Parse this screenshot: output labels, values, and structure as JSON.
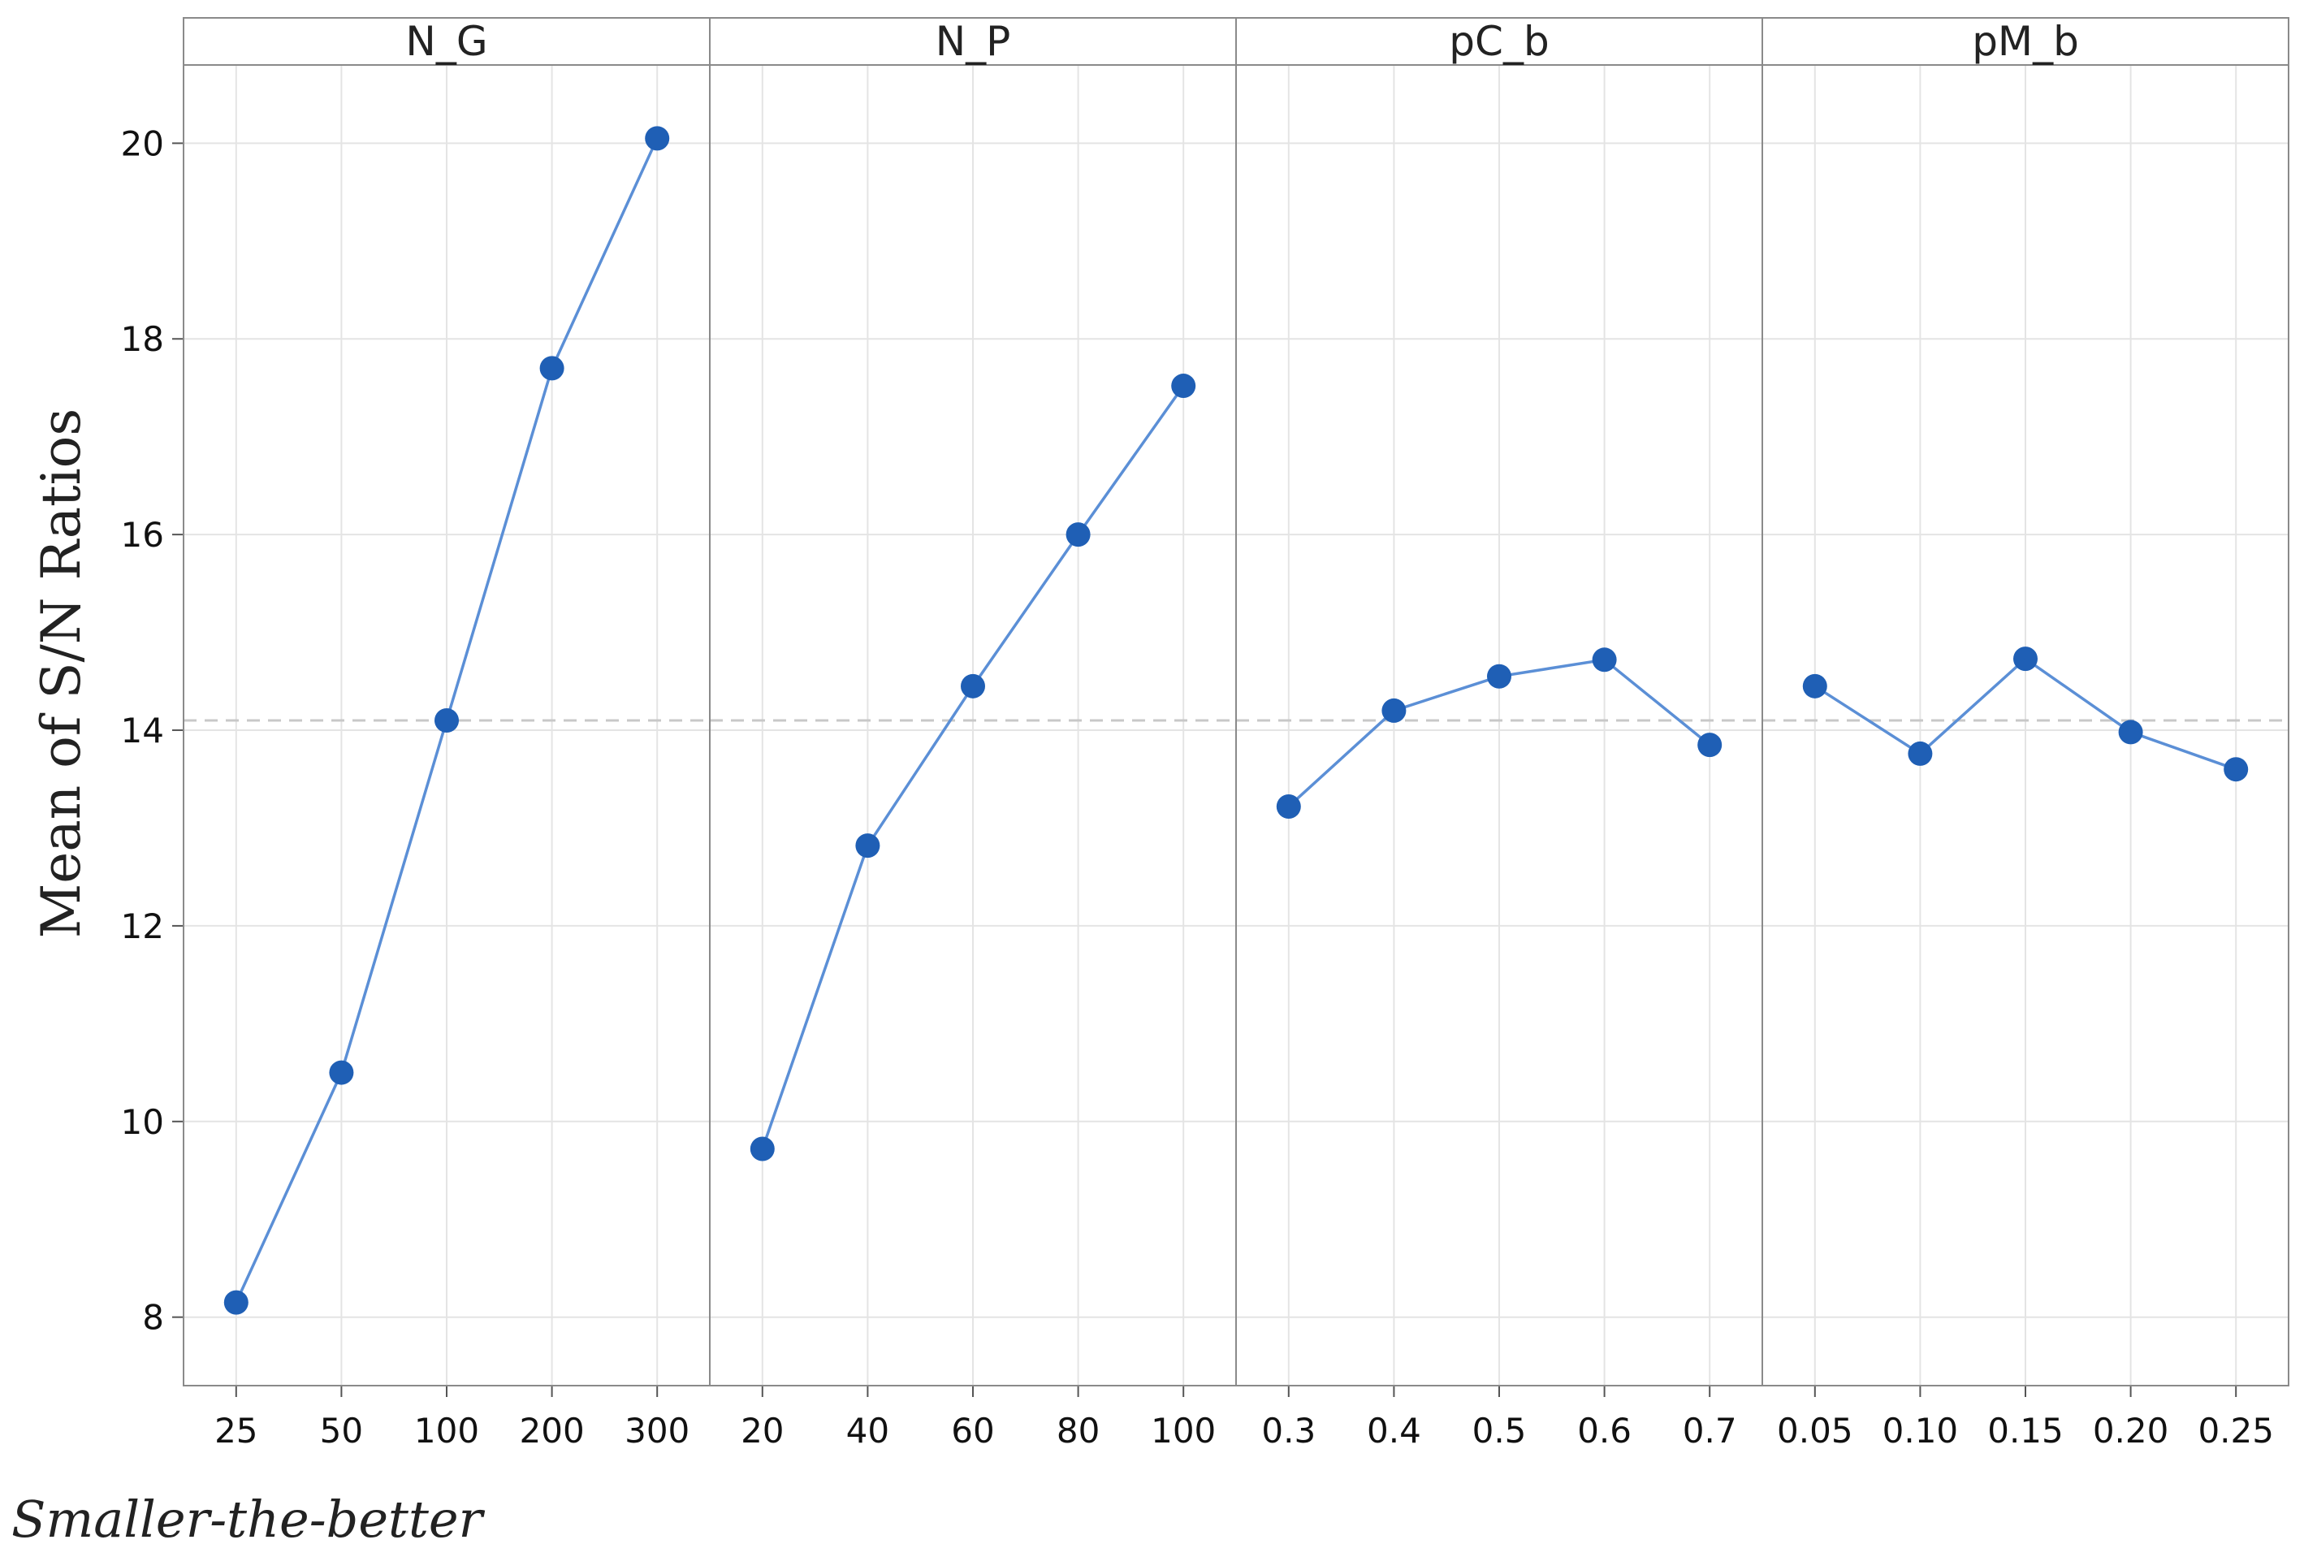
{
  "chart_data": {
    "type": "line",
    "ylabel": "Mean of S/N Ratios",
    "footnote": "Smaller-the-better",
    "ylim": [
      7.3,
      20.8
    ],
    "yticks": [
      "8",
      "10",
      "12",
      "14",
      "16",
      "18",
      "20"
    ],
    "reference_line": 14.1,
    "grid": true,
    "colors": {
      "series": "#1f5fb5",
      "line": "#5b8fd6",
      "grid": "#e4e4e4",
      "reference": "#c8c8c8"
    },
    "panels": [
      {
        "name": "N_G",
        "categories": [
          "25",
          "50",
          "100",
          "200",
          "300"
        ],
        "values": [
          8.15,
          10.5,
          14.1,
          17.7,
          20.05
        ]
      },
      {
        "name": "N_P",
        "categories": [
          "20",
          "40",
          "60",
          "80",
          "100"
        ],
        "values": [
          9.72,
          12.82,
          14.45,
          16.0,
          17.52
        ]
      },
      {
        "name": "pC_b",
        "categories": [
          "0.3",
          "0.4",
          "0.5",
          "0.6",
          "0.7"
        ],
        "values": [
          13.22,
          14.2,
          14.55,
          14.72,
          13.85
        ]
      },
      {
        "name": "pM_b",
        "categories": [
          "0.05",
          "0.10",
          "0.15",
          "0.20",
          "0.25"
        ],
        "values": [
          14.45,
          13.76,
          14.73,
          13.98,
          13.6
        ]
      }
    ]
  }
}
